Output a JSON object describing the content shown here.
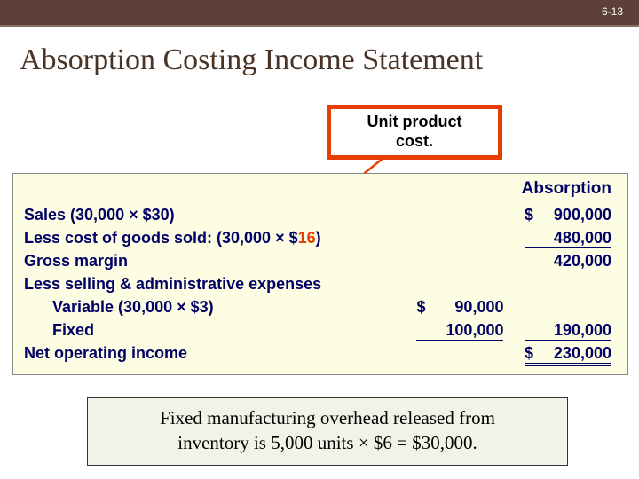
{
  "slide_number": "6-13",
  "title": "Absorption Costing Income Statement",
  "callout": {
    "line1": "Unit product",
    "line2": "cost."
  },
  "colors": {
    "brown_bar": "#5d4037",
    "accent_line": "#8d6e63",
    "title_color": "#4a3426",
    "callout_border": "#e53e00",
    "table_bg": "#fdfde3",
    "table_text": "#000066",
    "red": "#e53e00",
    "bottom_bg": "#f2f2e6"
  },
  "table": {
    "header": "Absorption",
    "rows": [
      {
        "label_pre": "Sales (30,000 × $30)",
        "label_red": "",
        "label_post": "",
        "sub": "",
        "amount": "900,000",
        "currency": "$",
        "style": ""
      },
      {
        "label_pre": "Less cost of goods sold: (30,000 × $",
        "label_red": "16",
        "label_post": ")",
        "sub": "",
        "amount": "480,000",
        "currency": "",
        "style": "single"
      },
      {
        "label_pre": "Gross margin",
        "label_red": "",
        "label_post": "",
        "sub": "",
        "amount": "420,000",
        "currency": "",
        "style": ""
      },
      {
        "label_pre": "Less selling & administrative expenses",
        "label_red": "",
        "label_post": "",
        "sub": "",
        "amount": "",
        "currency": "",
        "style": ""
      },
      {
        "label_pre": "Variable (30,000 × $3)",
        "label_red": "",
        "label_post": "",
        "indent": true,
        "sub": "90,000",
        "sub_currency": "$",
        "amount": "",
        "currency": "",
        "style": ""
      },
      {
        "label_pre": "Fixed",
        "label_red": "",
        "label_post": "",
        "indent": true,
        "sub": "100,000",
        "sub_currency": "",
        "sub_style": "single",
        "amount": "190,000",
        "currency": "",
        "style": "single"
      },
      {
        "label_pre": "Net operating income",
        "label_red": "",
        "label_post": "",
        "sub": "",
        "amount": "230,000",
        "currency": "$",
        "style": "double"
      }
    ]
  },
  "bottom": {
    "line1": "Fixed manufacturing overhead released from",
    "line2": "inventory is 5,000 units × $6 = $30,000."
  },
  "arrow": {
    "color": "#e53e00"
  }
}
